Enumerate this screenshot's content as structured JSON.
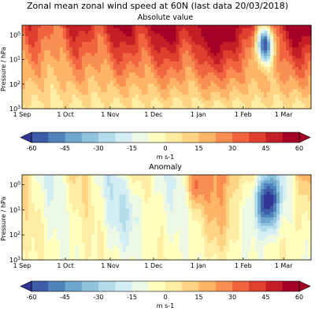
{
  "title": "Zonal mean zonal wind speed at 60N (last data 20/03/2018)",
  "chart_data": [
    {
      "type": "heatmap",
      "title": "Absolute value",
      "xlabel": "",
      "ylabel": "Pressure / hPa",
      "x_ticks": [
        "1 Sep",
        "1 Oct",
        "1 Nov",
        "1 Dec",
        "1 Jan",
        "1 Feb",
        "1 Mar"
      ],
      "y_scale": "log",
      "y_ticks": [
        "10^0",
        "10^1",
        "10^2",
        "10^3"
      ],
      "y_tick_values": [
        1,
        10,
        100,
        1000
      ],
      "ylim": [
        1000,
        0.4
      ],
      "x_range": [
        "1 Sep",
        "20 Mar"
      ],
      "colorbar": {
        "ticks": [
          -60,
          -45,
          -30,
          -15,
          0,
          15,
          30,
          45,
          60
        ],
        "range": [
          -60,
          60
        ],
        "label": "m s-1",
        "extend": "both",
        "colormap": "RdYlBu_r"
      }
    },
    {
      "type": "heatmap",
      "title": "Anomaly",
      "xlabel": "",
      "ylabel": "Pressure / hPa",
      "x_ticks": [
        "1 Sep",
        "1 Oct",
        "1 Nov",
        "1 Dec",
        "1 Jan",
        "1 Feb",
        "1 Mar"
      ],
      "y_scale": "log",
      "y_ticks": [
        "10^0",
        "10^1",
        "10^2",
        "10^3"
      ],
      "y_tick_values": [
        1,
        10,
        100,
        1000
      ],
      "ylim": [
        1000,
        0.4
      ],
      "x_range": [
        "1 Sep",
        "20 Mar"
      ],
      "colorbar": {
        "ticks": [
          -60,
          -45,
          -30,
          -15,
          0,
          15,
          30,
          45,
          60
        ],
        "range": [
          -60,
          60
        ],
        "label": "m s-1",
        "extend": "both",
        "colormap": "RdYlBu_r"
      }
    }
  ]
}
